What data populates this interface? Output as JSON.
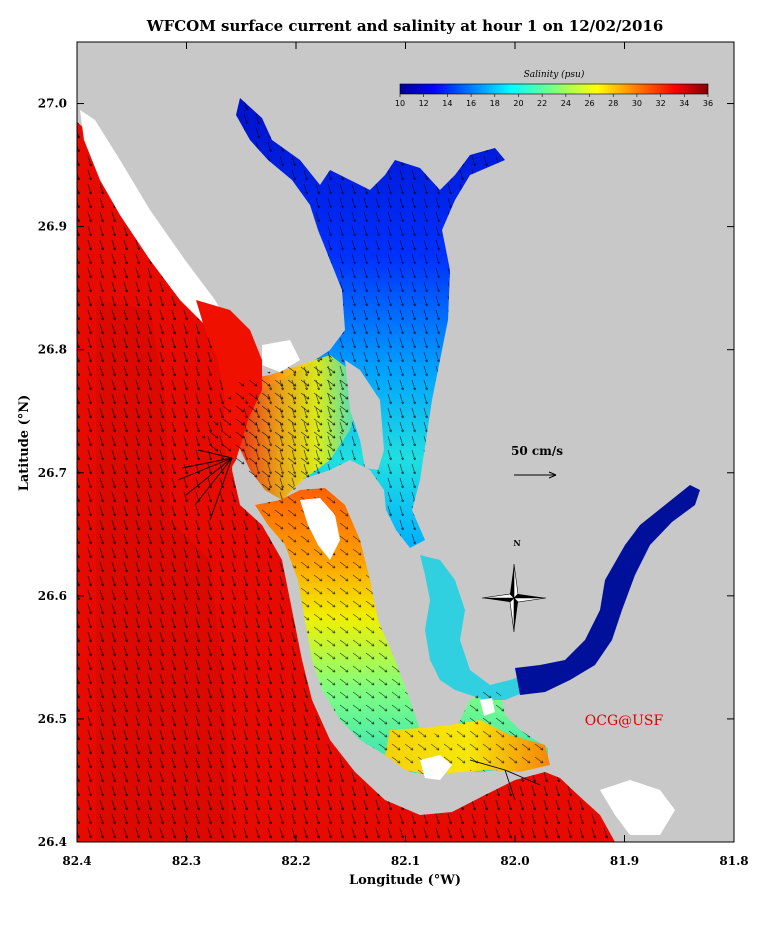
{
  "title": "WFCOM surface current and salinity at hour 1 on 12/02/2016",
  "x_axis": {
    "label": "Longitude (°W)",
    "ticks": [
      "82.4",
      "82.3",
      "82.2",
      "82.1",
      "82.0",
      "81.9",
      "81.8"
    ],
    "range": [
      82.4,
      81.8
    ]
  },
  "y_axis": {
    "label": "Latitude (°N)",
    "ticks": [
      "26.4",
      "26.5",
      "26.6",
      "26.7",
      "26.8",
      "26.9",
      "27.0"
    ],
    "range": [
      26.4,
      27.05
    ]
  },
  "colorbar": {
    "title": "Salinity (psu)",
    "ticks": [
      "10",
      "12",
      "14",
      "16",
      "18",
      "20",
      "22",
      "24",
      "26",
      "28",
      "30",
      "32",
      "34",
      "36"
    ],
    "range": [
      10,
      36
    ],
    "colormap": "jet"
  },
  "scale_arrow": {
    "label": "50 cm/s",
    "value_cm_s": 50
  },
  "north_arrow": {
    "label": "N"
  },
  "credit": "OCG@USF",
  "colors": {
    "land": "#c8c8c8",
    "gulf_salinity": "#e60a00",
    "credit_text": "#e00000"
  }
}
